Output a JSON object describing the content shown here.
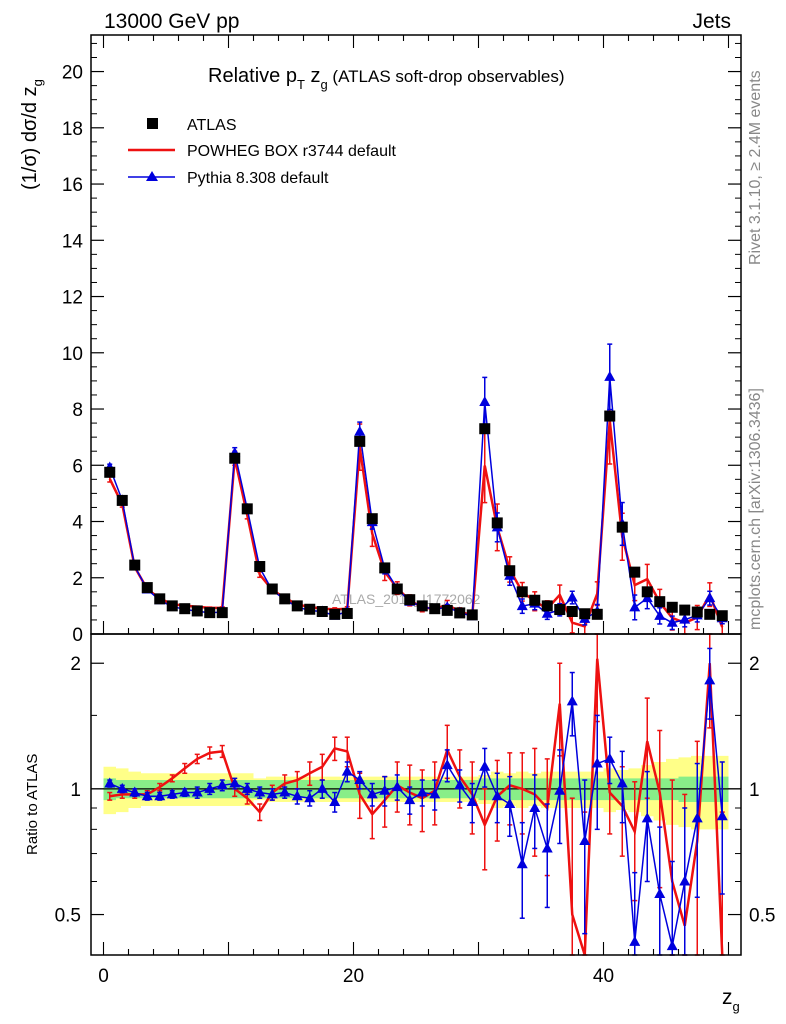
{
  "header": {
    "left": "13000 GeV pp",
    "right": "Jets"
  },
  "title": {
    "prefix": "Relative p",
    "sub_T": "T",
    "mid": " z",
    "sub_g": "g",
    "suffix": " (ATLAS soft-drop observables)"
  },
  "side_labels": {
    "rivet": "Rivet 3.1.10, ≥ 2.4M events",
    "mcplots": "mcplots.cern.ch [arXiv:1306.3436]"
  },
  "watermark": "ATLAS_2019_I1772062",
  "legend": {
    "atlas": "ATLAS",
    "powheg": "POWHEG BOX r3744 default",
    "pythia": "Pythia 8.308 default"
  },
  "axes": {
    "ylabel_main": "(1/σ) dσ/d z",
    "ylabel_main_sub": "g",
    "ylabel_ratio": "Ratio to ATLAS",
    "xlabel": "z",
    "xlabel_sub": "g"
  },
  "colors": {
    "atlas": "#000000",
    "powheg": "#ee1111",
    "pythia": "#0000dd",
    "band_inner": "#88ee88",
    "band_outer": "#ffff88"
  },
  "chart_data": {
    "type": "line",
    "x": [
      0.5,
      1.5,
      2.5,
      3.5,
      4.5,
      5.5,
      6.5,
      7.5,
      8.5,
      9.5,
      10.5,
      11.5,
      12.5,
      13.5,
      14.5,
      15.5,
      16.5,
      17.5,
      18.5,
      19.5,
      20.5,
      21.5,
      22.5,
      23.5,
      24.5,
      25.5,
      26.5,
      27.5,
      28.5,
      29.5,
      30.5,
      31.5,
      32.5,
      33.5,
      34.5,
      35.5,
      36.5,
      37.5,
      38.5,
      39.5,
      40.5,
      41.5,
      42.5,
      43.5,
      44.5,
      45.5,
      46.5,
      47.5,
      48.5,
      49.5
    ],
    "xlim": [
      -1,
      51
    ],
    "xticks": [
      0,
      20,
      40
    ],
    "main": {
      "ylim": [
        0,
        21.3
      ],
      "yticks": [
        0,
        2,
        4,
        6,
        8,
        10,
        12,
        14,
        16,
        18,
        20
      ]
    },
    "ratio": {
      "ylim": [
        0.4,
        2.35
      ],
      "yticks": [
        0.5,
        1,
        2
      ],
      "log_scale": true
    },
    "series": [
      {
        "name": "ATLAS",
        "values": [
          5.75,
          4.75,
          2.45,
          1.65,
          1.25,
          1.0,
          0.9,
          0.82,
          0.76,
          0.76,
          6.25,
          4.45,
          2.4,
          1.6,
          1.25,
          1.0,
          0.88,
          0.8,
          0.7,
          0.73,
          6.85,
          4.1,
          2.35,
          1.6,
          1.22,
          1.0,
          0.9,
          0.84,
          0.75,
          0.68,
          7.3,
          3.95,
          2.25,
          1.5,
          1.2,
          1.0,
          0.87,
          0.8,
          0.72,
          0.7,
          7.75,
          3.8,
          2.2,
          1.5,
          1.15,
          0.95,
          0.85,
          0.78,
          0.7,
          0.65
        ],
        "band_inner": [
          0.06,
          0.05,
          0.05,
          0.05,
          0.05,
          0.05,
          0.05,
          0.05,
          0.05,
          0.05,
          0.05,
          0.05,
          0.05,
          0.05,
          0.05,
          0.05,
          0.05,
          0.05,
          0.05,
          0.05,
          0.05,
          0.05,
          0.05,
          0.05,
          0.05,
          0.05,
          0.05,
          0.05,
          0.05,
          0.05,
          0.06,
          0.06,
          0.06,
          0.06,
          0.06,
          0.06,
          0.06,
          0.06,
          0.06,
          0.06,
          0.06,
          0.06,
          0.06,
          0.06,
          0.06,
          0.06,
          0.07,
          0.07,
          0.07,
          0.07
        ],
        "band_outer": [
          0.13,
          0.12,
          0.1,
          0.09,
          0.09,
          0.09,
          0.09,
          0.09,
          0.09,
          0.09,
          0.09,
          0.09,
          0.06,
          0.07,
          0.07,
          0.07,
          0.07,
          0.07,
          0.07,
          0.07,
          0.07,
          0.07,
          0.07,
          0.07,
          0.07,
          0.07,
          0.07,
          0.07,
          0.07,
          0.07,
          0.08,
          0.1,
          0.09,
          0.1,
          0.09,
          0.1,
          0.1,
          0.1,
          0.1,
          0.1,
          0.12,
          0.11,
          0.12,
          0.14,
          0.16,
          0.18,
          0.19,
          0.2,
          0.2,
          0.2
        ]
      },
      {
        "name": "POWHEG BOX r3744 default",
        "ratio": [
          0.96,
          0.97,
          0.97,
          0.97,
          1.01,
          1.06,
          1.12,
          1.18,
          1.22,
          1.23,
          1.0,
          0.95,
          0.88,
          0.98,
          1.03,
          1.05,
          1.09,
          1.13,
          1.25,
          1.23,
          0.97,
          0.87,
          0.94,
          1.02,
          0.98,
          0.95,
          0.99,
          1.24,
          1.07,
          0.97,
          0.82,
          0.96,
          1.02,
          1.0,
          0.97,
          0.9,
          1.6,
          0.5,
          0.38,
          2.05,
          0.98,
          0.91,
          0.79,
          1.3,
          0.98,
          0.6,
          0.47,
          0.75,
          2.0,
          0.38
        ],
        "err": [
          0.02,
          0.02,
          0.02,
          0.02,
          0.02,
          0.02,
          0.03,
          0.03,
          0.04,
          0.04,
          0.04,
          0.03,
          0.04,
          0.04,
          0.05,
          0.05,
          0.07,
          0.08,
          0.08,
          0.1,
          0.12,
          0.11,
          0.13,
          0.14,
          0.16,
          0.16,
          0.17,
          0.18,
          0.17,
          0.19,
          0.18,
          0.21,
          0.2,
          0.22,
          0.28,
          0.28,
          0.4,
          0.45,
          0.5,
          0.6,
          0.2,
          0.22,
          0.25,
          0.35,
          0.4,
          0.45,
          0.5,
          0.55,
          0.6,
          0.5
        ]
      },
      {
        "name": "Pythia 8.308 default",
        "ratio": [
          1.03,
          1.0,
          0.98,
          0.96,
          0.96,
          0.97,
          0.98,
          0.98,
          1.0,
          1.02,
          1.03,
          1.0,
          0.98,
          0.97,
          0.98,
          0.96,
          0.95,
          1.0,
          0.93,
          1.1,
          1.05,
          0.97,
          0.99,
          1.01,
          0.94,
          0.98,
          0.97,
          1.14,
          1.02,
          0.93,
          1.13,
          0.96,
          0.92,
          0.66,
          0.9,
          0.72,
          0.99,
          1.62,
          0.75,
          1.15,
          1.18,
          1.03,
          0.43,
          0.85,
          0.56,
          0.42,
          0.6,
          0.85,
          1.82,
          0.86
        ],
        "err": [
          0.02,
          0.02,
          0.02,
          0.02,
          0.02,
          0.02,
          0.02,
          0.03,
          0.03,
          0.03,
          0.03,
          0.03,
          0.03,
          0.03,
          0.03,
          0.04,
          0.04,
          0.05,
          0.05,
          0.06,
          0.05,
          0.06,
          0.08,
          0.07,
          0.07,
          0.07,
          0.08,
          0.1,
          0.09,
          0.1,
          0.12,
          0.13,
          0.15,
          0.17,
          0.18,
          0.2,
          0.25,
          0.28,
          0.3,
          0.35,
          0.15,
          0.2,
          0.2,
          0.25,
          0.25,
          0.25,
          0.3,
          0.3,
          0.35,
          0.3
        ]
      }
    ]
  }
}
